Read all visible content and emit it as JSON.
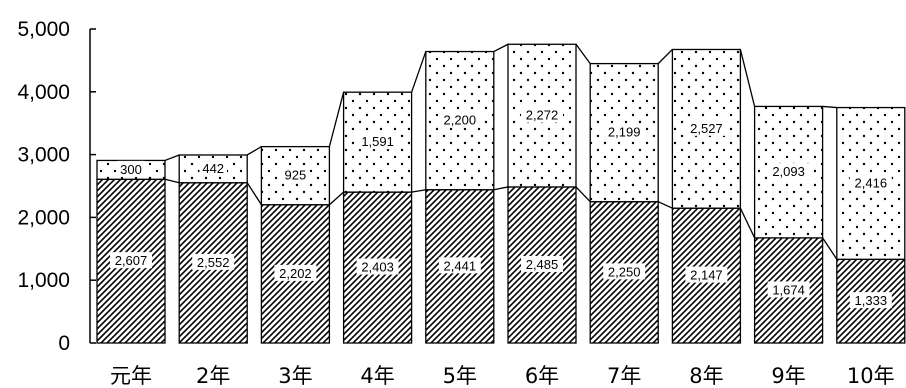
{
  "chart_data": {
    "type": "bar",
    "stacked": true,
    "connector_lines": true,
    "categories": [
      "元年",
      "2年",
      "3年",
      "4年",
      "5年",
      "6年",
      "7年",
      "8年",
      "9年",
      "10年"
    ],
    "series": [
      {
        "pattern": "diagonal-hatch",
        "values": [
          2607,
          2552,
          2202,
          2403,
          2441,
          2485,
          2250,
          2147,
          1674,
          1333
        ],
        "labels": [
          "2,607",
          "2,552",
          "2,202",
          "2,403",
          "2,441",
          "2,485",
          "2,250",
          "2,147",
          "1,674",
          "1,333"
        ]
      },
      {
        "pattern": "dots",
        "values": [
          300,
          442,
          925,
          1591,
          2200,
          2272,
          2199,
          2527,
          2093,
          2416
        ],
        "labels": [
          "300",
          "442",
          "925",
          "1,591",
          "2,200",
          "2,272",
          "2,199",
          "2,527",
          "2,093",
          "2,416"
        ]
      }
    ],
    "ylim": [
      0,
      5000
    ],
    "yticks": [
      0,
      1000,
      2000,
      3000,
      4000,
      5000
    ],
    "ytick_labels": [
      "0",
      "1,000",
      "2,000",
      "3,000",
      "4,000",
      "5,000"
    ],
    "grid": false,
    "legend": "none"
  }
}
